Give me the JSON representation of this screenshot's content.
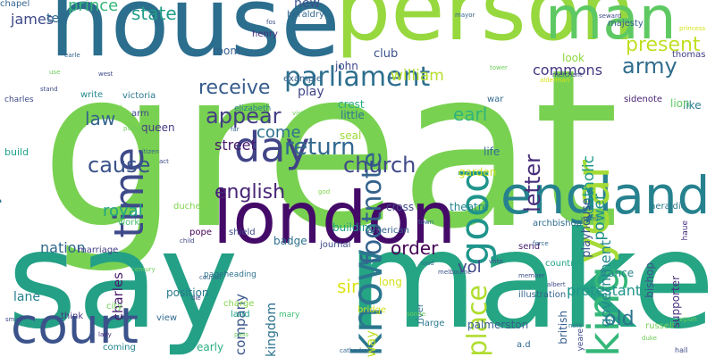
{
  "words": [
    {
      "text": "great",
      "color": "#79d151"
    },
    {
      "text": "make",
      "color": "#25a584"
    },
    {
      "text": "say",
      "color": "#24a086"
    },
    {
      "text": "house",
      "color": "#2c6e8e"
    },
    {
      "text": "person",
      "color": "#97d83e"
    },
    {
      "text": "london",
      "color": "#440a68"
    },
    {
      "text": "man",
      "color": "#5ec962"
    },
    {
      "text": "england",
      "color": "#26828e"
    },
    {
      "text": "court",
      "color": "#3b528b"
    },
    {
      "text": "year",
      "color": "#a5db36"
    },
    {
      "text": "king",
      "color": "#35b779"
    },
    {
      "text": "know",
      "color": "#2a778e"
    },
    {
      "text": "time",
      "color": "#3e4a89"
    },
    {
      "text": "day",
      "color": "#414487"
    },
    {
      "text": "good",
      "color": "#1f958b"
    },
    {
      "text": "lord",
      "color": "#277f8e"
    },
    {
      "text": "parliament",
      "color": "#2e6f8e"
    },
    {
      "text": "footnote",
      "color": "#33638d"
    },
    {
      "text": "place",
      "color": "#b0dd2f"
    },
    {
      "text": "letter",
      "color": "#472d7b"
    },
    {
      "text": "return",
      "color": "#31688e"
    },
    {
      "text": "church",
      "color": "#3f4889"
    },
    {
      "text": "english",
      "color": "#482576"
    },
    {
      "text": "cause",
      "color": "#3a538b"
    },
    {
      "text": "appear",
      "color": "#433e85"
    },
    {
      "text": "army",
      "color": "#2f6c8e"
    },
    {
      "text": "present",
      "color": "#c2df23"
    },
    {
      "text": "receive",
      "color": "#365c8d"
    },
    {
      "text": "state",
      "color": "#1f9e89"
    },
    {
      "text": "prince",
      "color": "#35b779"
    },
    {
      "text": "subject",
      "color": "#2d718e"
    },
    {
      "text": "authority",
      "color": "#28ae80"
    },
    {
      "text": "thousand",
      "color": "#1f988b"
    },
    {
      "text": "james",
      "color": "#3e4989"
    },
    {
      "text": "law",
      "color": "#33638d"
    },
    {
      "text": "earl",
      "color": "#2fb47c"
    },
    {
      "text": "william",
      "color": "#b5de2b"
    },
    {
      "text": "commons",
      "color": "#453882"
    },
    {
      "text": "come",
      "color": "#2d718e"
    },
    {
      "text": "street",
      "color": "#481b6d"
    },
    {
      "text": "royal",
      "color": "#20a386"
    },
    {
      "text": "order",
      "color": "#440154"
    },
    {
      "text": "vol",
      "color": "#404688"
    },
    {
      "text": "sir",
      "color": "#dde318"
    },
    {
      "text": "old",
      "color": "#2c738e"
    },
    {
      "text": "power",
      "color": "#21918c"
    },
    {
      "text": "catholic",
      "color": "#1f9a8a"
    },
    {
      "text": "government",
      "color": "#23898e"
    },
    {
      "text": "nation",
      "color": "#31688e"
    },
    {
      "text": "charles",
      "color": "#481b6d"
    },
    {
      "text": "company",
      "color": "#39558c"
    },
    {
      "text": "kingdom",
      "color": "#2c728e"
    },
    {
      "text": "protestant",
      "color": "#1f948c"
    },
    {
      "text": "lane",
      "color": "#26828e"
    },
    {
      "text": "tell",
      "color": "#306a8e"
    },
    {
      "text": "club",
      "color": "#3b528b"
    },
    {
      "text": "look",
      "color": "#90d743"
    },
    {
      "text": "like",
      "color": "#287c8e"
    },
    {
      "text": "john",
      "color": "#3e4a89"
    },
    {
      "text": "play",
      "color": "#404588"
    },
    {
      "text": "seal",
      "color": "#a0da39"
    },
    {
      "text": "crest",
      "color": "#26ad81"
    },
    {
      "text": "little",
      "color": "#2a788e"
    },
    {
      "text": "life",
      "color": "#2e6e8e"
    },
    {
      "text": "garden",
      "color": "#c8e020"
    },
    {
      "text": "theatre",
      "color": "#24868e"
    },
    {
      "text": "building",
      "color": "#1f9f88"
    },
    {
      "text": "cross",
      "color": "#3f4889"
    },
    {
      "text": "long",
      "color": "#d5e21a"
    },
    {
      "text": "way",
      "color": "#c0df25"
    },
    {
      "text": "early",
      "color": "#29af7f"
    },
    {
      "text": "new",
      "color": "#3b528b"
    },
    {
      "text": "heraldry",
      "color": "#32658e"
    },
    {
      "text": "room",
      "color": "#355f8d"
    },
    {
      "text": "henry",
      "color": "#46327e"
    },
    {
      "text": "example",
      "color": "#33628d"
    },
    {
      "text": "build",
      "color": "#1f9f88"
    },
    {
      "text": "queen",
      "color": "#453882"
    },
    {
      "text": "elizabeth",
      "color": "#277f8e"
    },
    {
      "text": "thomas",
      "color": "#423f85"
    },
    {
      "text": "majesty",
      "color": "#355e8d"
    },
    {
      "text": "sidenote",
      "color": "#482374"
    },
    {
      "text": "lion",
      "color": "#5ec962"
    },
    {
      "text": "war",
      "color": "#31688e"
    },
    {
      "text": "heraldic",
      "color": "#2a788e"
    },
    {
      "text": "playhouse",
      "color": "#3b528b"
    },
    {
      "text": "shield",
      "color": "#3f4889"
    },
    {
      "text": "badge",
      "color": "#2d718e"
    },
    {
      "text": "send",
      "color": "#481f70"
    },
    {
      "text": "write",
      "color": "#23898e"
    },
    {
      "text": "arm",
      "color": "#3e4a89"
    },
    {
      "text": "god",
      "color": "#7ad151"
    },
    {
      "text": "work",
      "color": "#44bf70"
    },
    {
      "text": "pope",
      "color": "#440154"
    },
    {
      "text": "marriage",
      "color": "#433e85"
    },
    {
      "text": "position",
      "color": "#2a788e"
    },
    {
      "text": "charge",
      "color": "#84d44b"
    },
    {
      "text": "land",
      "color": "#1fa088"
    },
    {
      "text": "view",
      "color": "#31688e"
    },
    {
      "text": "think",
      "color": "#453781"
    },
    {
      "text": "city",
      "color": "#6ece58"
    },
    {
      "text": "river",
      "color": "#2e6e8e"
    },
    {
      "text": "palmerston",
      "color": "#355f8d"
    },
    {
      "text": "bridge",
      "color": "#d2e21b"
    },
    {
      "text": "journal",
      "color": "#3e4a89"
    },
    {
      "text": "american",
      "color": "#34618d"
    },
    {
      "text": "archbishop",
      "color": "#2e6d8e"
    },
    {
      "text": "country",
      "color": "#20a386"
    },
    {
      "text": "france",
      "color": "#25848e"
    },
    {
      "text": "bishop",
      "color": "#3b528b"
    },
    {
      "text": "supporter",
      "color": "#472d7b"
    },
    {
      "text": "illustration",
      "color": "#33638d"
    },
    {
      "text": "british",
      "color": "#365c8d"
    },
    {
      "text": "russell",
      "color": "#73d056"
    },
    {
      "text": "large",
      "color": "#2a788e"
    },
    {
      "text": "a.d",
      "color": "#306a8e"
    },
    {
      "text": "mary",
      "color": "#3fbc73"
    },
    {
      "text": "pageheading",
      "color": "#2c718e"
    },
    {
      "text": "coming",
      "color": "#25858e"
    },
    {
      "text": "duchess",
      "color": "#7fd34e"
    },
    {
      "text": "charles",
      "color": "#3e4989"
    },
    {
      "text": "victoria",
      "color": "#2a788e"
    },
    {
      "text": "god",
      "color": "#81d34d"
    },
    {
      "text": "fos",
      "color": "#3b528b"
    },
    {
      "text": "visit",
      "color": "#6ccd5a"
    },
    {
      "text": "mayor",
      "color": "#33638d"
    },
    {
      "text": "seward",
      "color": "#3e4a89"
    },
    {
      "text": "princess",
      "color": "#d8e219"
    },
    {
      "text": "merchant",
      "color": "#3e4989"
    },
    {
      "text": "yeare",
      "color": "#3e4989"
    },
    {
      "text": "haue",
      "color": "#472f7d"
    },
    {
      "text": "vpon",
      "color": "#6ccd5a"
    },
    {
      "text": "hall",
      "color": "#3e4989"
    },
    {
      "text": "note",
      "color": "#2d708e"
    },
    {
      "text": "duke",
      "color": "#6ccd5a"
    },
    {
      "text": "albert",
      "color": "#3e4a89"
    },
    {
      "text": "force",
      "color": "#33638d"
    },
    {
      "text": "member",
      "color": "#3b528b"
    },
    {
      "text": "vnto",
      "color": "#3e4a89"
    },
    {
      "text": "road",
      "color": "#2e6e8e"
    },
    {
      "text": "melbourne",
      "color": "#3b528b"
    },
    {
      "text": "town",
      "color": "#33638d"
    },
    {
      "text": "water",
      "color": "#2e6e8e"
    },
    {
      "text": "citizen",
      "color": "#355f8d"
    },
    {
      "text": "act",
      "color": "#3e4a89"
    },
    {
      "text": "palace",
      "color": "#6ccd5a"
    },
    {
      "text": "far",
      "color": "#33638d"
    },
    {
      "text": "child",
      "color": "#3e4989"
    },
    {
      "text": "council",
      "color": "#33638d"
    },
    {
      "text": "use",
      "color": "#6ccd5a"
    },
    {
      "text": "stand",
      "color": "#3e4a89"
    },
    {
      "text": "west",
      "color": "#3e4989"
    },
    {
      "text": "earle",
      "color": "#33638d"
    },
    {
      "text": "tower",
      "color": "#6ccd5a"
    },
    {
      "text": "alderman",
      "color": "#d8e219"
    },
    {
      "text": "sonne",
      "color": "#6ccd5a"
    },
    {
      "text": "lady",
      "color": "#472f7d"
    },
    {
      "text": "small",
      "color": "#3e4989"
    },
    {
      "text": "century",
      "color": "#6ccd5a"
    },
    {
      "text": "cathedral",
      "color": "#33638d"
    },
    {
      "text": "pass",
      "color": "#6ccd5a"
    },
    {
      "text": "die",
      "color": "#3e4a89"
    },
    {
      "text": "chapel",
      "color": "#33638d"
    }
  ]
}
